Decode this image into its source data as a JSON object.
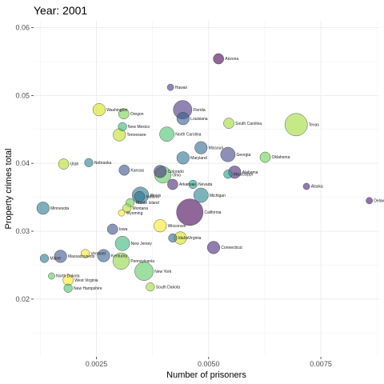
{
  "title": "Year: 2001",
  "chart_data": {
    "type": "scatter",
    "title": "Year: 2001",
    "xlabel": "Number of prisoners",
    "ylabel": "Property crimes total",
    "xlim": [
      0.0011,
      0.0088
    ],
    "ylim": [
      0.0115,
      0.061
    ],
    "x_ticks": [
      0.0025,
      0.005,
      0.0075
    ],
    "x_tick_labels": [
      "0.0025",
      "0.0050",
      "0.0075"
    ],
    "y_ticks": [
      0.02,
      0.03,
      0.04,
      0.05,
      0.06
    ],
    "y_tick_labels": [
      "0.02",
      "0.03",
      "0.04",
      "0.05",
      "0.06"
    ],
    "grid": true,
    "legend": "none",
    "colors": {
      "high_incarceration": "#440154",
      "mid_incarceration": "#21908c",
      "low_incarceration": "#fde725"
    },
    "points": [
      {
        "label": "Arizona",
        "x": 0.00522,
        "y": 0.0554,
        "size": 4,
        "color": "#440154"
      },
      {
        "label": "Hawaii",
        "x": 0.00415,
        "y": 0.0512,
        "size": 2,
        "color": "#46337e"
      },
      {
        "label": "Florida",
        "x": 0.00442,
        "y": 0.0479,
        "size": 8,
        "color": "#46327e"
      },
      {
        "label": "Louisiana",
        "x": 0.00443,
        "y": 0.0466,
        "size": 5,
        "color": "#365c8d"
      },
      {
        "label": "Washington",
        "x": 0.00256,
        "y": 0.0479,
        "size": 5,
        "color": "#d8e219"
      },
      {
        "label": "Oregon",
        "x": 0.00311,
        "y": 0.0473,
        "size": 4,
        "color": "#7ad151"
      },
      {
        "label": "New Mexico",
        "x": 0.00308,
        "y": 0.0454,
        "size": 3,
        "color": "#35b779"
      },
      {
        "label": "Tennessee",
        "x": 0.00301,
        "y": 0.0442,
        "size": 5,
        "color": "#c2df23"
      },
      {
        "label": "North Carolina",
        "x": 0.00407,
        "y": 0.0443,
        "size": 6,
        "color": "#4ac16d"
      },
      {
        "label": "South Carolina",
        "x": 0.00545,
        "y": 0.0459,
        "size": 4,
        "color": "#a0da39"
      },
      {
        "label": "Texas",
        "x": 0.00695,
        "y": 0.0457,
        "size": 10,
        "color": "#a0da39"
      },
      {
        "label": "Missouri",
        "x": 0.00483,
        "y": 0.0423,
        "size": 5,
        "color": "#31688e"
      },
      {
        "label": "Georgia",
        "x": 0.00543,
        "y": 0.0413,
        "size": 6,
        "color": "#414487"
      },
      {
        "label": "Oklahoma",
        "x": 0.00626,
        "y": 0.0409,
        "size": 4,
        "color": "#6ece58"
      },
      {
        "label": "Maryland",
        "x": 0.00443,
        "y": 0.0408,
        "size": 5,
        "color": "#2c728e"
      },
      {
        "label": "Utah",
        "x": 0.00177,
        "y": 0.0399,
        "size": 4,
        "color": "#b5de2b"
      },
      {
        "label": "Nebraska",
        "x": 0.00233,
        "y": 0.0401,
        "size": 3,
        "color": "#26828e"
      },
      {
        "label": "Kansas",
        "x": 0.00312,
        "y": 0.039,
        "size": 4,
        "color": "#3b528b"
      },
      {
        "label": "Colorado",
        "x": 0.00392,
        "y": 0.0388,
        "size": 5,
        "color": "#46327e"
      },
      {
        "label": "Ohio",
        "x": 0.00398,
        "y": 0.0383,
        "size": 7,
        "color": "#5ec962"
      },
      {
        "label": "Alabama",
        "x": 0.00558,
        "y": 0.0387,
        "size": 5,
        "color": "#482475"
      },
      {
        "label": "Mississippi",
        "x": 0.00543,
        "y": 0.0384,
        "size": 3,
        "color": "#1f9e89"
      },
      {
        "label": "Arkansas",
        "x": 0.0042,
        "y": 0.0369,
        "size": 4,
        "color": "#482878"
      },
      {
        "label": "Nevada",
        "x": 0.00465,
        "y": 0.0369,
        "size": 3,
        "color": "#1f9e89"
      },
      {
        "label": "Alaska",
        "x": 0.00718,
        "y": 0.0366,
        "size": 2,
        "color": "#482475"
      },
      {
        "label": "Delaware",
        "x": 0.00858,
        "y": 0.0345,
        "size": 2,
        "color": "#481467"
      },
      {
        "label": "Michigan",
        "x": 0.00483,
        "y": 0.0353,
        "size": 6,
        "color": "#26828e"
      },
      {
        "label": "Indiana",
        "x": 0.00346,
        "y": 0.0351,
        "size": 4,
        "color": "#2c728e"
      },
      {
        "label": "Illinois",
        "x": 0.00348,
        "y": 0.0353,
        "size": 7,
        "color": "#2c728e"
      },
      {
        "label": "Minnesota",
        "x": 0.00131,
        "y": 0.0334,
        "size": 5,
        "color": "#2a788e"
      },
      {
        "label": "Rhode Island",
        "x": 0.00325,
        "y": 0.0342,
        "size": 3,
        "color": "#6ece58"
      },
      {
        "label": "Montana",
        "x": 0.00318,
        "y": 0.0334,
        "size": 3,
        "color": "#b5de2b"
      },
      {
        "label": "California",
        "x": 0.00458,
        "y": 0.0328,
        "size": 12,
        "color": "#440154"
      },
      {
        "label": "Wyoming",
        "x": 0.00306,
        "y": 0.0327,
        "size": 2,
        "color": "#fde725"
      },
      {
        "label": "Wisconsin",
        "x": 0.00392,
        "y": 0.0308,
        "size": 5,
        "color": "#fde725"
      },
      {
        "label": "Iowa",
        "x": 0.00286,
        "y": 0.0303,
        "size": 4,
        "color": "#3b528b"
      },
      {
        "label": "Idaho",
        "x": 0.0042,
        "y": 0.029,
        "size": 3,
        "color": "#31688e"
      },
      {
        "label": "Virginia",
        "x": 0.00437,
        "y": 0.029,
        "size": 5,
        "color": "#d8e219"
      },
      {
        "label": "New Jersey",
        "x": 0.00308,
        "y": 0.0282,
        "size": 6,
        "color": "#35b779"
      },
      {
        "label": "Connecticut",
        "x": 0.00511,
        "y": 0.0276,
        "size": 5,
        "color": "#482878"
      },
      {
        "label": "Vermont",
        "x": 0.00225,
        "y": 0.0267,
        "size": 3,
        "color": "#fde725"
      },
      {
        "label": "Kentucky",
        "x": 0.00266,
        "y": 0.0264,
        "size": 5,
        "color": "#33638d"
      },
      {
        "label": "Massachusetts",
        "x": 0.0017,
        "y": 0.0263,
        "size": 5,
        "color": "#3b528b"
      },
      {
        "label": "Maine",
        "x": 0.00134,
        "y": 0.026,
        "size": 3,
        "color": "#2a788e"
      },
      {
        "label": "Pennsylvania",
        "x": 0.00305,
        "y": 0.0256,
        "size": 7,
        "color": "#8fd744"
      },
      {
        "label": "New York",
        "x": 0.00356,
        "y": 0.0241,
        "size": 8,
        "color": "#5ec962"
      },
      {
        "label": "North Dakota",
        "x": 0.0015,
        "y": 0.0234,
        "size": 2,
        "color": "#5ec962"
      },
      {
        "label": "West Virginia",
        "x": 0.00187,
        "y": 0.0228,
        "size": 4,
        "color": "#fde725"
      },
      {
        "label": "South Dakota",
        "x": 0.0037,
        "y": 0.0218,
        "size": 3,
        "color": "#a0da39"
      },
      {
        "label": "New Hampshire",
        "x": 0.00187,
        "y": 0.0216,
        "size": 3,
        "color": "#4ac16d"
      }
    ]
  }
}
